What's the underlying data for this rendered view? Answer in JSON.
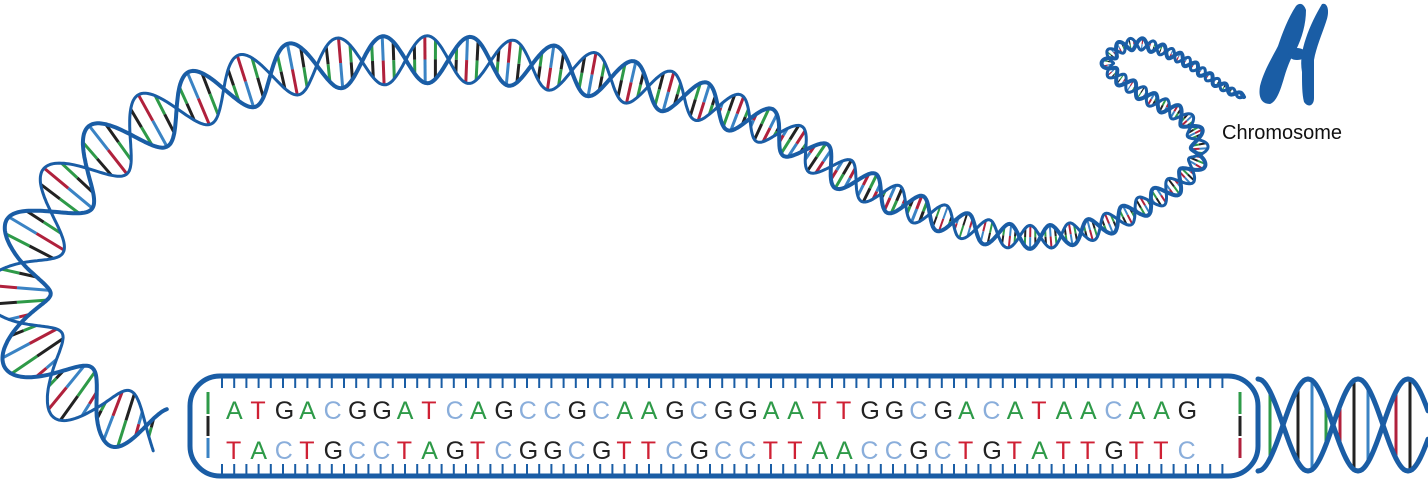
{
  "labels": {
    "chromosome": "Chromosome"
  },
  "sequence": {
    "top": "ATGACGGATCAGCCGCAAGCGGAATTGGCGACATAACAAG",
    "bottom": "TACTGCCTAGTCGGCGTTCGCCTTAACCGCTGTATTGTTC"
  },
  "colors": {
    "strand": "#1a5da5",
    "chromosome": "#1a5da5",
    "A": "#2e9a48",
    "T": "#cf2034",
    "G": "#222222",
    "C": "#8aaedb",
    "rung_palette": [
      "#2e9a48",
      "#b0213c",
      "#222222",
      "#3a83c4"
    ]
  },
  "icons": {
    "chromosome": "chromosome-icon"
  }
}
